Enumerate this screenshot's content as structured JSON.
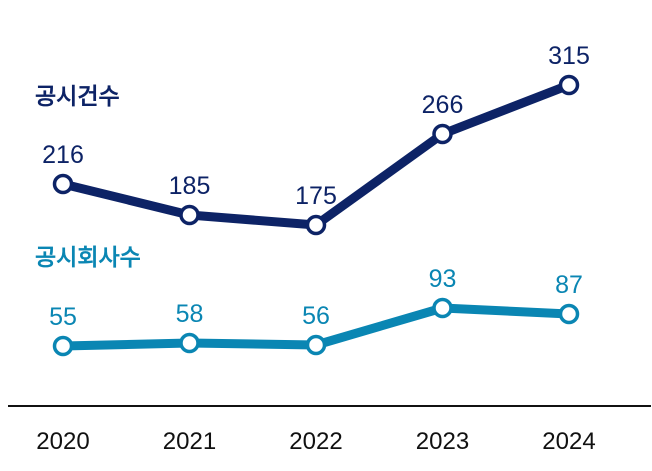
{
  "chart_data": {
    "type": "line",
    "categories": [
      "2020",
      "2021",
      "2022",
      "2023",
      "2024"
    ],
    "series": [
      {
        "name": "공시건수",
        "values": [
          216,
          185,
          175,
          266,
          315
        ],
        "color": "#0d2366"
      },
      {
        "name": "공시회사수",
        "values": [
          55,
          58,
          56,
          93,
          87
        ],
        "color": "#0a86b3"
      }
    ],
    "title": "",
    "xlabel": "",
    "ylabel": "",
    "grid": false,
    "legend": "inline labels beside each series"
  }
}
